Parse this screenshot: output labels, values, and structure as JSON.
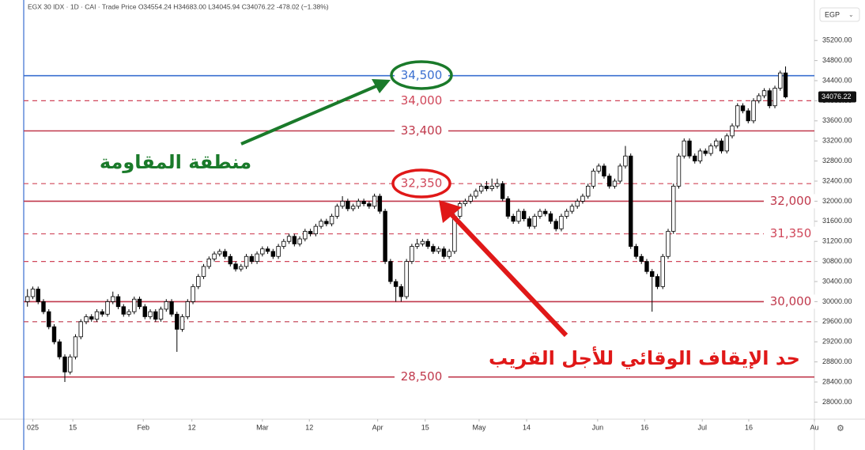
{
  "chart_data": {
    "type": "candlestick",
    "header": "EGX 30 IDX · 1D · CAI · Trade Price  O34554.24  H34683.00  L34045.94  C34076.22  -478.02 (−1.38%)",
    "currency": "EGP",
    "last_price": 34076.22,
    "up_color": "#ffffff",
    "down_color": "#000000",
    "xlim": [
      -0.7,
      147.4
    ],
    "xticks": [
      {
        "value": 1,
        "label": "025"
      },
      {
        "value": 8.5,
        "label": "15"
      },
      {
        "value": 21.7,
        "label": "Feb"
      },
      {
        "value": 30.8,
        "label": "12"
      },
      {
        "value": 44,
        "label": "Mar"
      },
      {
        "value": 52.8,
        "label": "12"
      },
      {
        "value": 65.6,
        "label": "Apr"
      },
      {
        "value": 74.5,
        "label": "15"
      },
      {
        "value": 84.6,
        "label": "May"
      },
      {
        "value": 93.5,
        "label": "14"
      },
      {
        "value": 106.8,
        "label": "Jun"
      },
      {
        "value": 115.6,
        "label": "16"
      },
      {
        "value": 126.4,
        "label": "Jul"
      },
      {
        "value": 135.1,
        "label": "16"
      },
      {
        "value": 147.4,
        "label": "Au"
      }
    ],
    "ylim": [
      27660,
      35770
    ],
    "yticks": [
      {
        "value": 28000,
        "label": "28000.00"
      },
      {
        "value": 28400,
        "label": "28400.00"
      },
      {
        "value": 28800,
        "label": "28800.00"
      },
      {
        "value": 29200,
        "label": "29200.00"
      },
      {
        "value": 29600,
        "label": "29600.00"
      },
      {
        "value": 30000,
        "label": "30000.00"
      },
      {
        "value": 30400,
        "label": "30400.00"
      },
      {
        "value": 30800,
        "label": "30800.00"
      },
      {
        "value": 31200,
        "label": "31200.00"
      },
      {
        "value": 31600,
        "label": "31600.00"
      },
      {
        "value": 32000,
        "label": "32000.00"
      },
      {
        "value": 32400,
        "label": "32400.00"
      },
      {
        "value": 32800,
        "label": "32800.00"
      },
      {
        "value": 33200,
        "label": "33200.00"
      },
      {
        "value": 33600,
        "label": "33600.00"
      },
      {
        "value": 34000,
        "label": "34000.00"
      },
      {
        "value": 34400,
        "label": "34400.00"
      },
      {
        "value": 34800,
        "label": "34800.00"
      },
      {
        "value": 35200,
        "label": "35200.00"
      }
    ],
    "levels": [
      {
        "value": 34500,
        "label": "34,500",
        "color": "#3a6fd0",
        "dash": false,
        "label_position": "center"
      },
      {
        "value": 34000,
        "label": "34,000",
        "color": "#d0475a",
        "dash": true,
        "label_position": "center"
      },
      {
        "value": 33400,
        "label": "33,400",
        "color": "#c0394c",
        "dash": false,
        "label_position": "center"
      },
      {
        "value": 32350,
        "label": "32,350",
        "color": "#d0475a",
        "dash": true,
        "label_position": "center"
      },
      {
        "value": 32000,
        "label": "32,000",
        "color": "#c0394c",
        "dash": false,
        "label_position": "right"
      },
      {
        "value": 31350,
        "label": "31,350",
        "color": "#d0475a",
        "dash": true,
        "label_position": "right"
      },
      {
        "value": 30800,
        "color": "#d0475a",
        "dash": true
      },
      {
        "value": 30000,
        "label": "30,000",
        "color": "#c0394c",
        "dash": false,
        "label_position": "right"
      },
      {
        "value": 29600,
        "color": "#c0394c",
        "dash": true
      },
      {
        "value": 28500,
        "label": "28,500",
        "color": "#c0394c",
        "dash": false,
        "label_position": "center"
      }
    ],
    "annotations": [
      {
        "text": "منطقة المقاومة",
        "color": "#1a7a2a"
      },
      {
        "text": "حد الإيقاف الوقائي للأجل القريب",
        "color": "#e01818"
      }
    ],
    "ohlc": [
      [
        30000,
        30250,
        29900,
        30100
      ],
      [
        30100,
        30300,
        30050,
        30250
      ],
      [
        30250,
        30300,
        29950,
        30000
      ],
      [
        30000,
        30050,
        29750,
        29800
      ],
      [
        29800,
        29850,
        29450,
        29500
      ],
      [
        29500,
        29550,
        29150,
        29200
      ],
      [
        29200,
        29250,
        28850,
        28900
      ],
      [
        28900,
        28950,
        28400,
        28600
      ],
      [
        28600,
        28950,
        28550,
        28900
      ],
      [
        28900,
        29350,
        28850,
        29300
      ],
      [
        29300,
        29650,
        29250,
        29600
      ],
      [
        29600,
        29750,
        29550,
        29700
      ],
      [
        29700,
        29750,
        29600,
        29650
      ],
      [
        29650,
        29850,
        29600,
        29800
      ],
      [
        29800,
        29850,
        29700,
        29750
      ],
      [
        29750,
        30050,
        29700,
        30000
      ],
      [
        30000,
        30200,
        29950,
        30100
      ],
      [
        30100,
        30150,
        29850,
        29900
      ],
      [
        29900,
        29950,
        29700,
        29750
      ],
      [
        29750,
        29850,
        29700,
        29800
      ],
      [
        29800,
        30100,
        29750,
        30050
      ],
      [
        30050,
        30100,
        29850,
        29900
      ],
      [
        29900,
        29950,
        29650,
        29700
      ],
      [
        29700,
        29850,
        29650,
        29800
      ],
      [
        29800,
        29850,
        29600,
        29650
      ],
      [
        29650,
        29900,
        29600,
        29850
      ],
      [
        29850,
        30050,
        29800,
        30000
      ],
      [
        30000,
        30050,
        29700,
        29750
      ],
      [
        29750,
        29800,
        29000,
        29450
      ],
      [
        29450,
        29750,
        29400,
        29700
      ],
      [
        29700,
        30050,
        29650,
        30000
      ],
      [
        30000,
        30350,
        29950,
        30300
      ],
      [
        30300,
        30550,
        30250,
        30500
      ],
      [
        30500,
        30750,
        30450,
        30700
      ],
      [
        30700,
        30900,
        30650,
        30850
      ],
      [
        30850,
        31000,
        30800,
        30950
      ],
      [
        30950,
        31050,
        30900,
        31000
      ],
      [
        31000,
        31050,
        30850,
        30900
      ],
      [
        30900,
        30950,
        30700,
        30750
      ],
      [
        30750,
        30800,
        30600,
        30650
      ],
      [
        30650,
        30750,
        30600,
        30700
      ],
      [
        30700,
        30950,
        30650,
        30900
      ],
      [
        30900,
        30950,
        30750,
        30800
      ],
      [
        30800,
        31000,
        30750,
        30950
      ],
      [
        30950,
        31100,
        30900,
        31050
      ],
      [
        31050,
        31100,
        30950,
        31000
      ],
      [
        31000,
        31050,
        30850,
        30900
      ],
      [
        30900,
        31150,
        30850,
        31100
      ],
      [
        31100,
        31250,
        31050,
        31200
      ],
      [
        31200,
        31350,
        31150,
        31300
      ],
      [
        31300,
        31350,
        31100,
        31150
      ],
      [
        31150,
        31300,
        31100,
        31250
      ],
      [
        31250,
        31450,
        31200,
        31400
      ],
      [
        31400,
        31450,
        31300,
        31350
      ],
      [
        31350,
        31550,
        31300,
        31500
      ],
      [
        31500,
        31650,
        31450,
        31600
      ],
      [
        31600,
        31650,
        31500,
        31550
      ],
      [
        31550,
        31750,
        31500,
        31700
      ],
      [
        31700,
        31950,
        31650,
        31900
      ],
      [
        31900,
        32100,
        31850,
        32000
      ],
      [
        32000,
        32050,
        31800,
        31850
      ],
      [
        31850,
        31950,
        31800,
        31900
      ],
      [
        31900,
        32050,
        31850,
        32000
      ],
      [
        32000,
        32050,
        31900,
        31950
      ],
      [
        31950,
        32000,
        31850,
        31900
      ],
      [
        31900,
        32150,
        31850,
        32100
      ],
      [
        32100,
        32150,
        31750,
        31800
      ],
      [
        31800,
        31850,
        30750,
        30800
      ],
      [
        30800,
        30850,
        30350,
        30400
      ],
      [
        30400,
        30450,
        30000,
        30300
      ],
      [
        30300,
        30350,
        30000,
        30100
      ],
      [
        30100,
        30850,
        30050,
        30800
      ],
      [
        30800,
        31150,
        30750,
        31100
      ],
      [
        31100,
        31250,
        31050,
        31150
      ],
      [
        31150,
        31250,
        31100,
        31200
      ],
      [
        31200,
        31250,
        31050,
        31100
      ],
      [
        31100,
        31150,
        30950,
        31000
      ],
      [
        31000,
        31100,
        30950,
        31050
      ],
      [
        31050,
        31100,
        30850,
        30900
      ],
      [
        30900,
        31050,
        30850,
        31000
      ],
      [
        31000,
        31750,
        30950,
        31700
      ],
      [
        31700,
        32000,
        31650,
        31950
      ],
      [
        31950,
        32050,
        31900,
        32000
      ],
      [
        32000,
        32150,
        31950,
        32100
      ],
      [
        32100,
        32250,
        32050,
        32200
      ],
      [
        32200,
        32350,
        32150,
        32300
      ],
      [
        32300,
        32400,
        32200,
        32250
      ],
      [
        32250,
        32450,
        32200,
        32300
      ],
      [
        32300,
        32450,
        32250,
        32350
      ],
      [
        32350,
        32400,
        32000,
        32050
      ],
      [
        32050,
        32100,
        31650,
        31700
      ],
      [
        31700,
        31750,
        31550,
        31600
      ],
      [
        31600,
        31850,
        31550,
        31800
      ],
      [
        31800,
        31850,
        31600,
        31650
      ],
      [
        31650,
        31700,
        31450,
        31500
      ],
      [
        31500,
        31750,
        31450,
        31700
      ],
      [
        31700,
        31850,
        31650,
        31800
      ],
      [
        31800,
        31850,
        31700,
        31750
      ],
      [
        31750,
        31800,
        31550,
        31600
      ],
      [
        31600,
        31650,
        31400,
        31450
      ],
      [
        31450,
        31750,
        31400,
        31700
      ],
      [
        31700,
        31850,
        31650,
        31800
      ],
      [
        31800,
        31950,
        31750,
        31900
      ],
      [
        31900,
        32050,
        31850,
        32000
      ],
      [
        32000,
        32150,
        31950,
        32100
      ],
      [
        32100,
        32350,
        32050,
        32300
      ],
      [
        32300,
        32650,
        32250,
        32600
      ],
      [
        32600,
        32750,
        32550,
        32700
      ],
      [
        32700,
        32750,
        32450,
        32500
      ],
      [
        32500,
        32550,
        32250,
        32300
      ],
      [
        32300,
        32450,
        32250,
        32400
      ],
      [
        32400,
        32750,
        32350,
        32700
      ],
      [
        32700,
        33100,
        32650,
        32900
      ],
      [
        32900,
        32950,
        31050,
        31100
      ],
      [
        31100,
        31150,
        30850,
        30900
      ],
      [
        30900,
        30950,
        30750,
        30800
      ],
      [
        30800,
        30850,
        30550,
        30600
      ],
      [
        30600,
        30650,
        29800,
        30500
      ],
      [
        30500,
        30550,
        30250,
        30300
      ],
      [
        30300,
        30950,
        30250,
        30900
      ],
      [
        30900,
        31450,
        30850,
        31400
      ],
      [
        31400,
        32350,
        31350,
        32300
      ],
      [
        32300,
        32950,
        32250,
        32900
      ],
      [
        32900,
        33250,
        32850,
        33200
      ],
      [
        33200,
        33250,
        32850,
        32900
      ],
      [
        32900,
        32950,
        32750,
        32800
      ],
      [
        32800,
        33050,
        32750,
        33000
      ],
      [
        33000,
        33050,
        32900,
        32950
      ],
      [
        32950,
        33150,
        32900,
        33100
      ],
      [
        33100,
        33250,
        33050,
        33200
      ],
      [
        33200,
        33250,
        32950,
        33000
      ],
      [
        33000,
        33350,
        32950,
        33300
      ],
      [
        33300,
        33550,
        33250,
        33500
      ],
      [
        33500,
        33950,
        33450,
        33900
      ],
      [
        33900,
        33950,
        33750,
        33800
      ],
      [
        33800,
        33850,
        33550,
        33600
      ],
      [
        33600,
        34050,
        33550,
        34000
      ],
      [
        34000,
        34150,
        33950,
        34100
      ],
      [
        34100,
        34250,
        34050,
        34200
      ],
      [
        34200,
        34250,
        33850,
        33900
      ],
      [
        33900,
        34300,
        33850,
        34250
      ],
      [
        34250,
        34600,
        34200,
        34554.24
      ],
      [
        34554.24,
        34683,
        34045.94,
        34076.22
      ]
    ]
  }
}
